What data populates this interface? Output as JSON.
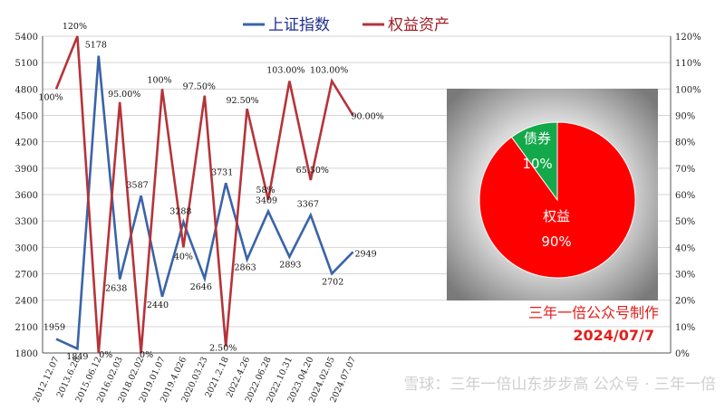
{
  "chart_data": {
    "type": "line",
    "title": "",
    "categories": [
      "2012.12.07",
      "2013.6.28",
      "2015.06.12",
      "2016.02.03",
      "2018.02.02",
      "2019.01.07",
      "2019.4.026",
      "2020.03.23",
      "2021.2.18",
      "2022.4.26",
      "2022.06.28",
      "2022.10.31",
      "2023.04.20",
      "2024.02.05",
      "2024.07.07"
    ],
    "series": [
      {
        "name": "上证指数",
        "axis": "left",
        "color": "#3a64a8",
        "values": [
          1959,
          1849,
          5178,
          2638,
          3587,
          2440,
          3288,
          2646,
          3731,
          2863,
          3409,
          2893,
          3367,
          2702,
          2949
        ],
        "labels": [
          "1959",
          "1849",
          "5178",
          "2638",
          "3587",
          "2440",
          "3288",
          "2646",
          "3731",
          "2863",
          "3409",
          "2893",
          "3367",
          "2702",
          "2949"
        ]
      },
      {
        "name": "权益资产",
        "axis": "right",
        "color": "#b5343a",
        "values": [
          100,
          120,
          0,
          95,
          0,
          100,
          40,
          97.5,
          2.5,
          92.5,
          58,
          103,
          65.5,
          103,
          90
        ],
        "labels": [
          "100%",
          "120%",
          "0%",
          "95.00%",
          "0%",
          "100%",
          "40%",
          "97.50%",
          "2.50%",
          "92.50%",
          "58%",
          "103.00%",
          "65.50%",
          "103.00%",
          "90.00%"
        ]
      }
    ],
    "left_axis": {
      "min": 1800,
      "max": 5400,
      "step": 300,
      "ticks": [
        "1800",
        "2100",
        "2400",
        "2700",
        "3000",
        "3300",
        "3600",
        "3900",
        "4200",
        "4500",
        "4800",
        "5100",
        "5400"
      ]
    },
    "right_axis": {
      "min": 0,
      "max": 120,
      "step": 10,
      "ticks": [
        "0%",
        "10%",
        "20%",
        "30%",
        "40%",
        "50%",
        "60%",
        "70%",
        "80%",
        "90%",
        "100%",
        "110%",
        "120%"
      ]
    },
    "grid": true,
    "legend_position": "top-center"
  },
  "pie": {
    "type": "pie",
    "slices": [
      {
        "label": "权益",
        "percent_label": "90%",
        "value": 90,
        "color": "#ff0000"
      },
      {
        "label": "债券",
        "percent_label": "10%",
        "value": 10,
        "color": "#13a84a"
      }
    ]
  },
  "credits": {
    "maker": "三年一倍公众号制作",
    "date": "2024/07/7"
  },
  "watermark": {
    "text": "雪球：三年一倍山东步步高  公众号 · 三年一倍"
  }
}
